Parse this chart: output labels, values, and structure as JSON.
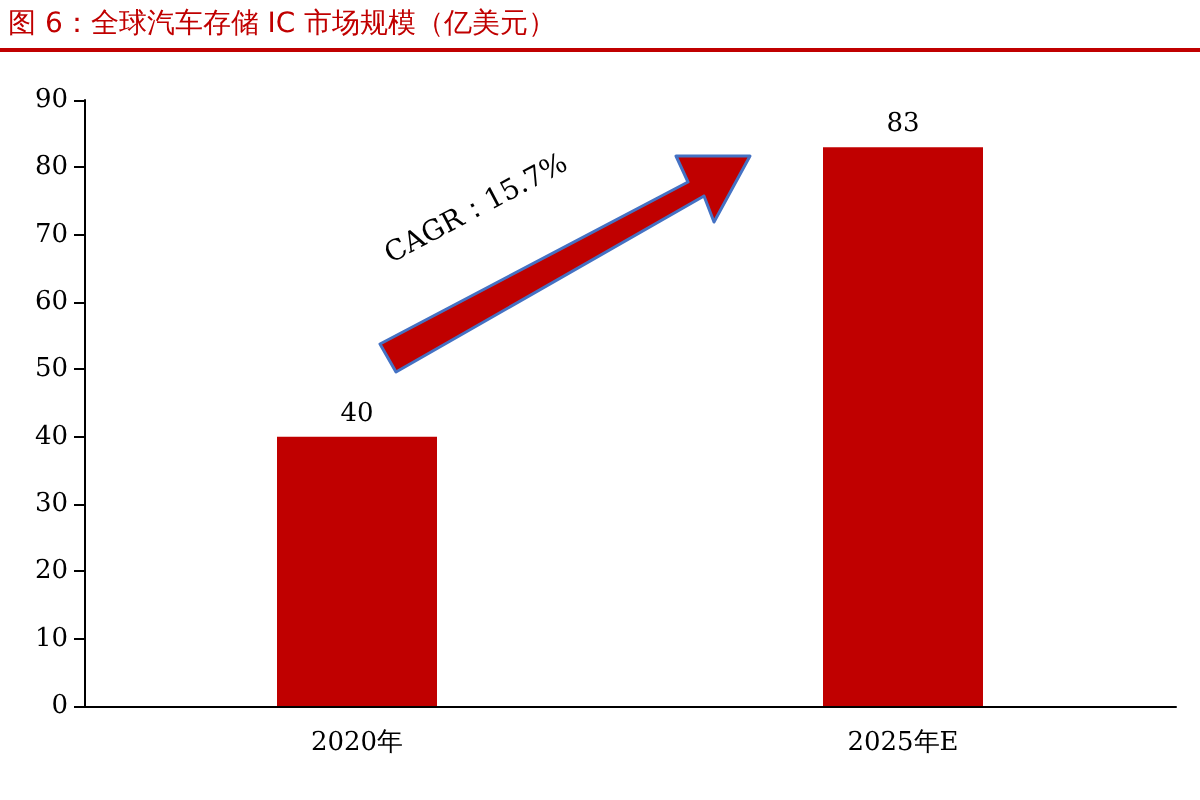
{
  "chart_data": {
    "type": "bar",
    "title": "图 6：全球汽车存储 IC 市场规模（亿美元）",
    "categories": [
      "2020年",
      "2025年E"
    ],
    "values": [
      40,
      83
    ],
    "color": "#c00000",
    "ylim": [
      0,
      90
    ],
    "yticks": [
      0,
      10,
      20,
      30,
      40,
      50,
      60,
      70,
      80,
      90
    ],
    "grid": false,
    "data_labels": true,
    "annotations": [
      "CAGR：15.7%"
    ]
  }
}
